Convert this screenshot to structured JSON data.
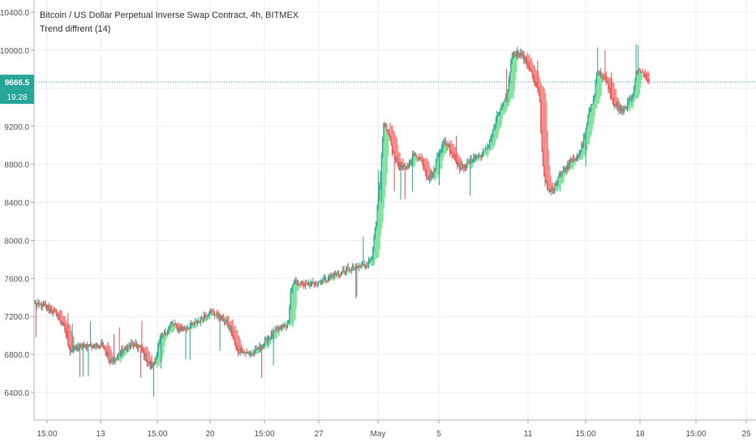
{
  "header": {
    "title": "Bitcoin / US Dollar Perpetual Inverse Swap Contract, 4h, BITMEX",
    "indicator": "Trend diffrent (14)"
  },
  "colors": {
    "up": "#26a69a",
    "down": "#ef5350",
    "trend_up": "#6fdc8c",
    "trend_down": "#f07878",
    "trend_flat": "#d9b44a",
    "grid": "#ebeef2",
    "axis_text": "#555555",
    "price_line": "#26a69a"
  },
  "chart_data": {
    "type": "candlestick",
    "title": "Bitcoin / US Dollar Perpetual Inverse Swap Contract, 4h, BITMEX",
    "subtitle": "Trend diffrent (14)",
    "ylim": [
      6100,
      10500
    ],
    "y_ticks": [
      6400.0,
      6800.0,
      7200.0,
      7600.0,
      8000.0,
      8400.0,
      8800.0,
      9200.0,
      9600.0,
      10000.0,
      10400.0
    ],
    "y_tick_labels": [
      "6400.0",
      "6800.0",
      "7200.0",
      "7600.0",
      "8000.0",
      "8400.0",
      "8800.0",
      "9200.0",
      "9600.0",
      "10000.0",
      "10400.0"
    ],
    "x_tick_labels": [
      "15:00",
      "13",
      "15:00",
      "20",
      "15:00",
      "27",
      "May",
      "5",
      "11",
      "15:00",
      "18",
      "15:00",
      "25"
    ],
    "last_price": 9666.5,
    "last_price_label": "9666.5",
    "countdown_label": "19:28",
    "grid": true,
    "path": [
      [
        0,
        7330
      ],
      [
        10,
        7300
      ],
      [
        20,
        7230
      ],
      [
        28,
        7050
      ],
      [
        33,
        6830
      ],
      [
        40,
        6880
      ],
      [
        48,
        6900
      ],
      [
        55,
        6880
      ],
      [
        63,
        6930
      ],
      [
        66,
        6820
      ],
      [
        70,
        6710
      ],
      [
        75,
        6750
      ],
      [
        82,
        6850
      ],
      [
        90,
        6900
      ],
      [
        98,
        6870
      ],
      [
        103,
        6760
      ],
      [
        108,
        6660
      ],
      [
        112,
        6730
      ],
      [
        115,
        6920
      ],
      [
        122,
        7050
      ],
      [
        128,
        7130
      ],
      [
        135,
        7050
      ],
      [
        142,
        7090
      ],
      [
        150,
        7130
      ],
      [
        157,
        7200
      ],
      [
        163,
        7260
      ],
      [
        170,
        7200
      ],
      [
        178,
        7150
      ],
      [
        184,
        7000
      ],
      [
        188,
        6830
      ],
      [
        192,
        6850
      ],
      [
        198,
        6800
      ],
      [
        205,
        6830
      ],
      [
        212,
        6900
      ],
      [
        220,
        7000
      ],
      [
        228,
        7080
      ],
      [
        232,
        7100
      ],
      [
        236,
        7120
      ],
      [
        238,
        7450
      ],
      [
        241,
        7550
      ],
      [
        246,
        7560
      ],
      [
        252,
        7520
      ],
      [
        262,
        7560
      ],
      [
        272,
        7600
      ],
      [
        282,
        7650
      ],
      [
        292,
        7700
      ],
      [
        302,
        7720
      ],
      [
        310,
        7760
      ],
      [
        314,
        7850
      ],
      [
        318,
        8200
      ],
      [
        322,
        8700
      ],
      [
        325,
        9250
      ],
      [
        330,
        9100
      ],
      [
        334,
        8900
      ],
      [
        340,
        8760
      ],
      [
        346,
        8760
      ],
      [
        352,
        8900
      ],
      [
        358,
        8880
      ],
      [
        362,
        8790
      ],
      [
        366,
        8650
      ],
      [
        371,
        8700
      ],
      [
        376,
        8930
      ],
      [
        382,
        9050
      ],
      [
        390,
        8880
      ],
      [
        396,
        8760
      ],
      [
        402,
        8790
      ],
      [
        409,
        8880
      ],
      [
        416,
        8900
      ],
      [
        420,
        8950
      ],
      [
        426,
        9130
      ],
      [
        432,
        9350
      ],
      [
        436,
        9420
      ],
      [
        440,
        9520
      ],
      [
        444,
        9950
      ],
      [
        448,
        9980
      ],
      [
        453,
        9960
      ],
      [
        458,
        9870
      ],
      [
        462,
        9780
      ],
      [
        466,
        9620
      ],
      [
        470,
        9550
      ],
      [
        472,
        9000
      ],
      [
        474,
        8700
      ],
      [
        478,
        8500
      ],
      [
        483,
        8530
      ],
      [
        488,
        8700
      ],
      [
        494,
        8750
      ],
      [
        500,
        8870
      ],
      [
        506,
        8870
      ],
      [
        512,
        9100
      ],
      [
        517,
        9400
      ],
      [
        521,
        9500
      ],
      [
        523,
        9770
      ],
      [
        526,
        9760
      ],
      [
        530,
        9700
      ],
      [
        534,
        9620
      ],
      [
        538,
        9450
      ],
      [
        542,
        9400
      ],
      [
        548,
        9350
      ],
      [
        553,
        9450
      ],
      [
        557,
        9550
      ],
      [
        560,
        9760
      ],
      [
        563,
        9800
      ],
      [
        566,
        9760
      ],
      [
        569,
        9720
      ],
      [
        572,
        9666.5
      ]
    ],
    "candles_count": 575
  }
}
